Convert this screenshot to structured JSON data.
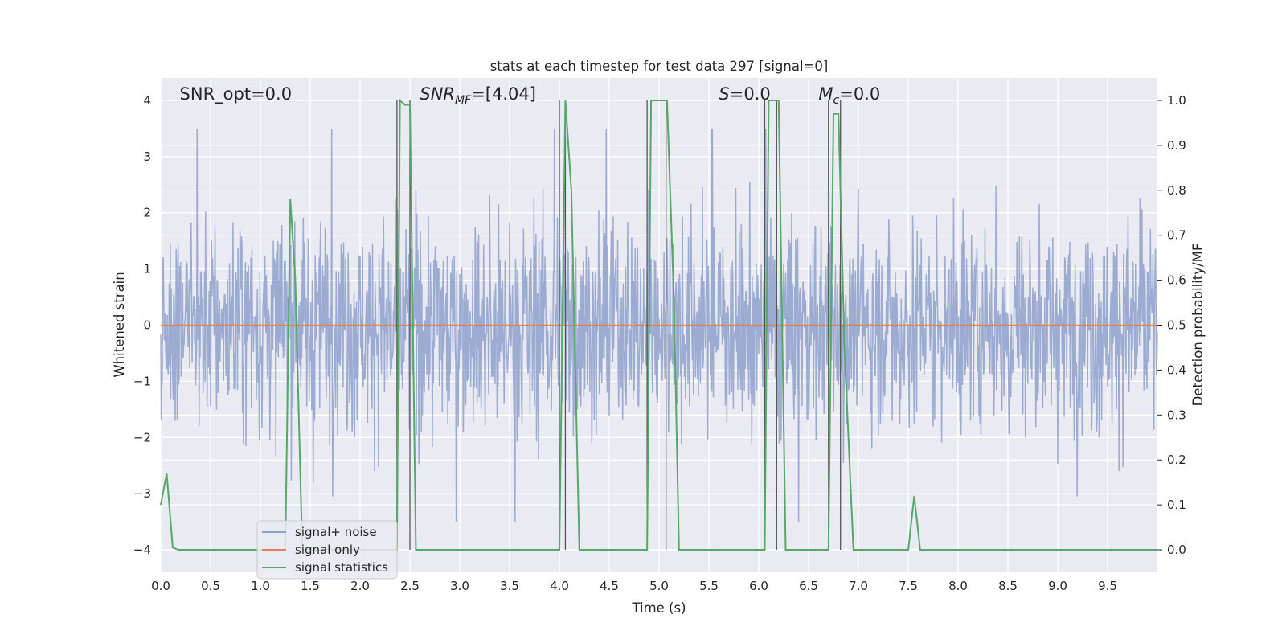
{
  "chart_data": {
    "type": "line",
    "title": "stats at each timestep for test data 297 [signal=0]",
    "xlabel": "Time (s)",
    "ylabel_left": "Whitened strain",
    "ylabel_right": "Detection probability/MF",
    "xlim": [
      0.0,
      10.0
    ],
    "ylim_left": [
      -4.4,
      4.4
    ],
    "ylim_right": [
      -0.05,
      1.05
    ],
    "x_ticks": [
      "0.0",
      "0.5",
      "1.0",
      "1.5",
      "2.0",
      "2.5",
      "3.0",
      "3.5",
      "4.0",
      "4.5",
      "5.0",
      "5.5",
      "6.0",
      "6.5",
      "7.0",
      "7.5",
      "8.0",
      "8.5",
      "9.0",
      "9.5"
    ],
    "y_ticks_left": [
      "−4",
      "−3",
      "−2",
      "−1",
      "0",
      "1",
      "2",
      "3",
      "4"
    ],
    "y_ticks_right": [
      "0.0",
      "0.1",
      "0.2",
      "0.3",
      "0.4",
      "0.5",
      "0.6",
      "0.7",
      "0.8",
      "0.9",
      "1.0"
    ],
    "grid": true,
    "legend_position": "lower-left",
    "annotations": [
      {
        "text": "SNR_opt=0.0",
        "x": 0.19
      },
      {
        "text_main": "SNR",
        "text_sub": "MF",
        "text_rest": "=[4.04]",
        "x": 2.6
      },
      {
        "text_main": "S",
        "text_rest": "=0.0",
        "x": 5.6
      },
      {
        "text_main": "M",
        "text_sub": "c",
        "text_rest": "=0.0",
        "x": 6.6
      }
    ],
    "series": [
      {
        "name": "signal+ noise",
        "color": "#8da0cb",
        "description_values": "noise envelope approx ±2.5 whitened strain"
      },
      {
        "name": "signal only",
        "color": "#dd8452",
        "values_constant": 0.0
      },
      {
        "name": "signal statistics",
        "color": "#55a868",
        "x": [
          0.0,
          0.06,
          0.12,
          0.18,
          1.25,
          1.3,
          1.35,
          1.42,
          1.5,
          2.37,
          2.4,
          2.45,
          2.5,
          2.56,
          4.0,
          4.06,
          4.12,
          4.2,
          4.88,
          4.92,
          5.0,
          5.08,
          5.15,
          5.2,
          6.06,
          6.1,
          6.2,
          6.27,
          6.7,
          6.75,
          6.8,
          6.86,
          6.95,
          7.5,
          7.56,
          7.62,
          10.0
        ],
        "values": [
          0.1,
          0.17,
          0.005,
          0.0,
          0.0,
          0.78,
          0.6,
          0.0,
          0.0,
          0.0,
          1.0,
          0.99,
          0.99,
          0.0,
          0.0,
          1.0,
          0.8,
          0.0,
          0.0,
          1.0,
          1.0,
          1.0,
          0.55,
          0.0,
          0.0,
          1.0,
          1.0,
          0.0,
          0.0,
          0.97,
          0.97,
          0.45,
          0.0,
          0.0,
          0.12,
          0.0,
          0.0
        ]
      }
    ],
    "vertical_lines": [
      2.37,
      2.5,
      4.0,
      4.06,
      4.88,
      5.07,
      6.06,
      6.18,
      6.7,
      6.82
    ]
  }
}
